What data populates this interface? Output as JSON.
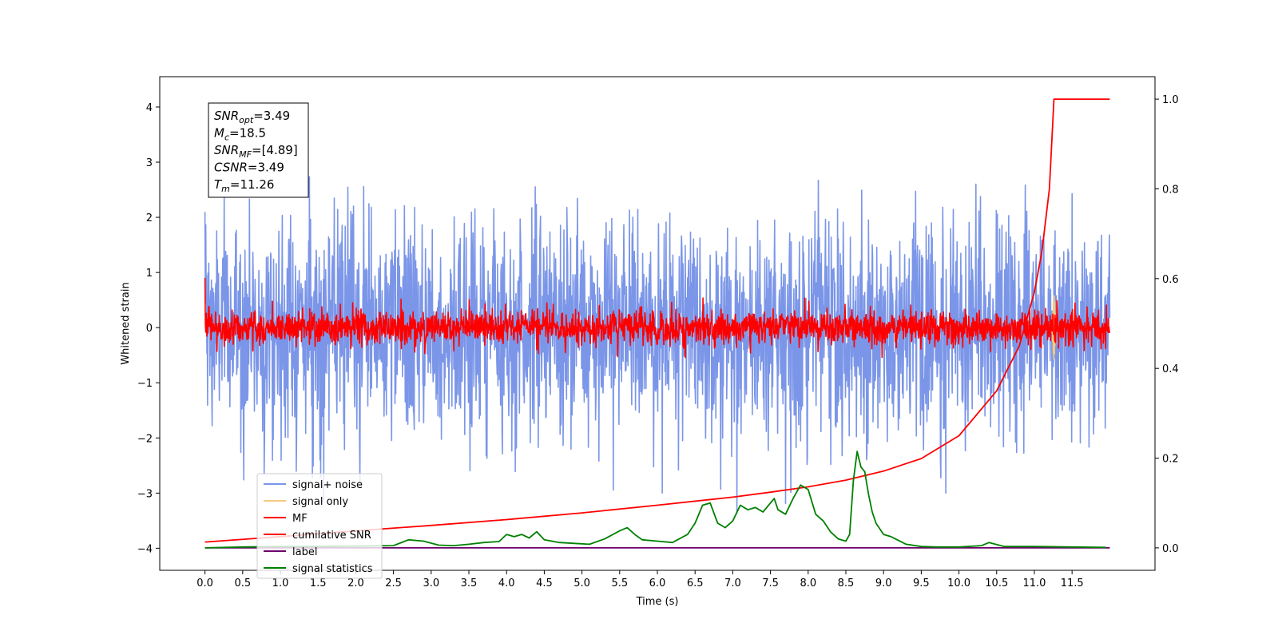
{
  "chart_data": {
    "type": "line",
    "xlabel": "Time (s)",
    "ylabel": "Whitened strain",
    "ylabel_right": "",
    "xlim": [
      -0.6,
      12.6
    ],
    "ylim": [
      -4.4,
      4.55
    ],
    "ylim_right": [
      -0.05,
      1.05
    ],
    "x_ticks": [
      0.0,
      0.5,
      1.0,
      1.5,
      2.0,
      2.5,
      3.0,
      3.5,
      4.0,
      4.5,
      5.0,
      5.5,
      6.0,
      6.5,
      7.0,
      7.5,
      8.0,
      8.5,
      9.0,
      9.5,
      10.0,
      10.5,
      11.0,
      11.5
    ],
    "x_tick_labels": [
      "0.0",
      "0.5",
      "1.0",
      "1.5",
      "2.0",
      "2.5",
      "3.0",
      "3.5",
      "4.0",
      "4.5",
      "5.0",
      "5.5",
      "6.0",
      "6.5",
      "7.0",
      "7.5",
      "8.0",
      "8.5",
      "9.0",
      "9.5",
      "10.0",
      "10.5",
      "11.0",
      "11.5"
    ],
    "y_ticks": [
      4,
      3,
      2,
      1,
      0,
      -1,
      -2,
      -3,
      -4
    ],
    "y_tick_labels": [
      "4",
      "3",
      "2",
      "1",
      "0",
      "−1",
      "−2",
      "−3",
      "−4"
    ],
    "y_ticks_right": [
      1.0,
      0.8,
      0.6,
      0.4,
      0.2,
      0.0
    ],
    "y_tick_labels_right": [
      "1.0",
      "0.8",
      "0.6",
      "0.4",
      "0.2",
      "0.0"
    ],
    "grid": false,
    "legend_placement": "lower-left",
    "annotation": {
      "lines": [
        {
          "main": "SNR",
          "sub": "opt",
          "rest": "=3.49"
        },
        {
          "main": "M",
          "sub": "c",
          "rest": "=18.5"
        },
        {
          "main": "SNR",
          "sub": "MF",
          "rest": "=[4.89]"
        },
        {
          "main": "CSNR",
          "sub": "",
          "rest": "=3.49"
        },
        {
          "main": "T",
          "sub": "m",
          "rest": "=11.26"
        }
      ]
    },
    "series": [
      {
        "name": "signal+ noise",
        "color": "#7b96e8",
        "axis": "left",
        "kind": "noise",
        "amplitude_std": 1.0,
        "x_range": [
          0.0,
          12.0
        ]
      },
      {
        "name": "signal only",
        "color": "#f5c97a",
        "axis": "left",
        "kind": "burst",
        "center": 11.26,
        "amplitude": 0.6
      },
      {
        "name": "MF",
        "color": "#ff0000",
        "axis": "left",
        "kind": "noise",
        "amplitude_std": 0.16,
        "x_range": [
          0.0,
          12.0
        ]
      },
      {
        "name": "cumilative SNR",
        "color": "#ff0000",
        "axis": "right",
        "x": [
          0.0,
          1.0,
          2.0,
          3.0,
          4.0,
          5.0,
          6.0,
          7.0,
          7.5,
          8.0,
          8.5,
          9.0,
          9.5,
          10.0,
          10.5,
          10.8,
          11.0,
          11.1,
          11.2,
          11.26,
          12.0
        ],
        "values": [
          0.013,
          0.025,
          0.038,
          0.05,
          0.063,
          0.078,
          0.095,
          0.113,
          0.124,
          0.136,
          0.151,
          0.171,
          0.199,
          0.25,
          0.35,
          0.45,
          0.57,
          0.66,
          0.8,
          1.0,
          1.0
        ]
      },
      {
        "name": "label",
        "color": "#6b006b",
        "axis": "right",
        "x": [
          0.0,
          12.0
        ],
        "values": [
          0.0,
          0.0
        ]
      },
      {
        "name": "signal statistics",
        "color": "#008000",
        "axis": "right",
        "x": [
          0.0,
          0.5,
          1.0,
          1.5,
          2.0,
          2.5,
          2.7,
          2.9,
          3.1,
          3.3,
          3.5,
          3.7,
          3.9,
          4.0,
          4.1,
          4.2,
          4.3,
          4.4,
          4.5,
          4.7,
          4.9,
          5.1,
          5.3,
          5.5,
          5.6,
          5.7,
          5.8,
          6.0,
          6.2,
          6.4,
          6.5,
          6.6,
          6.7,
          6.8,
          6.9,
          7.0,
          7.1,
          7.2,
          7.3,
          7.4,
          7.5,
          7.55,
          7.6,
          7.7,
          7.8,
          7.9,
          8.0,
          8.1,
          8.2,
          8.3,
          8.4,
          8.5,
          8.55,
          8.6,
          8.65,
          8.7,
          8.75,
          8.8,
          8.85,
          8.9,
          9.0,
          9.1,
          9.3,
          9.5,
          9.7,
          10.0,
          10.3,
          10.4,
          10.6,
          11.0,
          11.5,
          11.95
        ],
        "values": [
          0.0,
          0.002,
          0.003,
          0.003,
          0.004,
          0.005,
          0.018,
          0.015,
          0.006,
          0.005,
          0.008,
          0.012,
          0.014,
          0.03,
          0.025,
          0.03,
          0.022,
          0.036,
          0.018,
          0.012,
          0.01,
          0.008,
          0.02,
          0.038,
          0.045,
          0.03,
          0.018,
          0.015,
          0.012,
          0.03,
          0.055,
          0.095,
          0.1,
          0.055,
          0.045,
          0.06,
          0.095,
          0.085,
          0.09,
          0.08,
          0.1,
          0.11,
          0.085,
          0.075,
          0.11,
          0.14,
          0.13,
          0.075,
          0.06,
          0.035,
          0.02,
          0.015,
          0.03,
          0.15,
          0.215,
          0.18,
          0.17,
          0.12,
          0.08,
          0.055,
          0.03,
          0.025,
          0.008,
          0.003,
          0.002,
          0.002,
          0.005,
          0.012,
          0.003,
          0.003,
          0.002,
          0.001
        ]
      }
    ]
  }
}
